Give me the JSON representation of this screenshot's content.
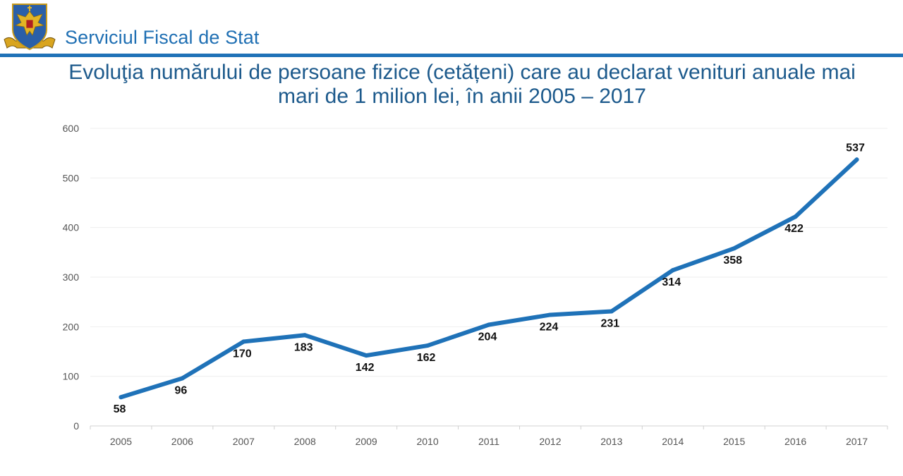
{
  "header": {
    "org_name": "Serviciul Fiscal de Stat",
    "logo_icon": "coat-of-arms-icon"
  },
  "title_lines": [
    "Evoluţia numărului de persoane fizice (cetățeni) care au declarat venituri anuale mai",
    "mari de 1 milion lei, în anii 2005 – 2017"
  ],
  "colors": {
    "accent": "#1f72b8",
    "line": "#1f72b8",
    "highlight_label": "#c00000",
    "title": "#1d5a8c"
  },
  "chart_data": {
    "type": "line",
    "title": "Evoluţia numărului de persoane fizice (cetățeni) care au declarat venituri anuale mai mari de 1 milion lei, în anii 2005 – 2017",
    "xlabel": "",
    "ylabel": "",
    "categories": [
      "2005",
      "2006",
      "2007",
      "2008",
      "2009",
      "2010",
      "2011",
      "2012",
      "2013",
      "2014",
      "2015",
      "2016",
      "2017"
    ],
    "series": [
      {
        "values": [
          58,
          96,
          170,
          183,
          142,
          162,
          204,
          224,
          231,
          314,
          358,
          422,
          537
        ]
      }
    ],
    "data_labels": [
      "58",
      "96",
      "170",
      "183",
      "142",
      "162",
      "204",
      "224",
      "231",
      "314",
      "358",
      "422",
      "537"
    ],
    "highlighted_label_index": 12,
    "ylim": [
      0,
      600
    ],
    "yticks": [
      0,
      100,
      200,
      300,
      400,
      500,
      600
    ],
    "grid": true,
    "legend": "none"
  }
}
